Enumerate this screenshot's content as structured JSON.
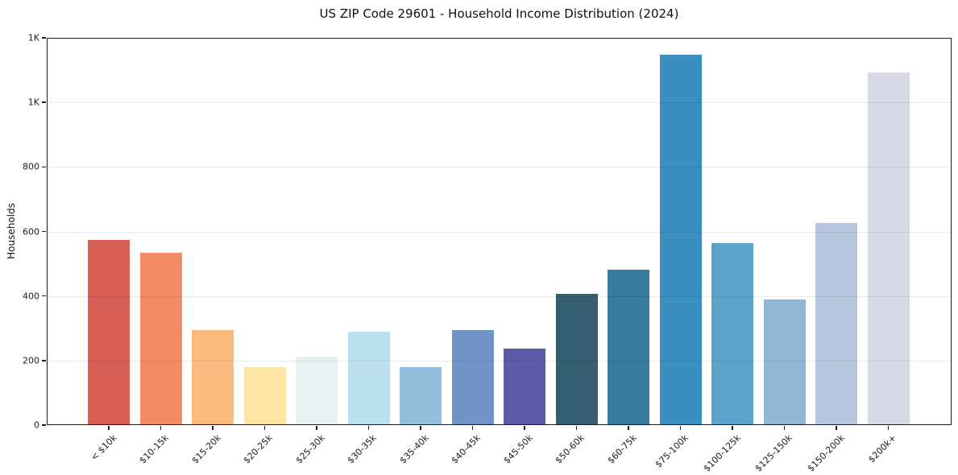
{
  "chart_data": {
    "type": "bar",
    "title": "US ZIP Code 29601 - Household Income Distribution (2024)",
    "xlabel": "",
    "ylabel": "Households",
    "categories": [
      "< $10k",
      "$10-15k",
      "$15-20k",
      "$20-25k",
      "$25-30k",
      "$30-35k",
      "$35-40k",
      "$40-45k",
      "$45-50k",
      "$50-60k",
      "$60-75k",
      "$75-100k",
      "$100-125k",
      "$125-150k",
      "$150-200k",
      "$200k+"
    ],
    "values": [
      575,
      535,
      295,
      180,
      212,
      290,
      180,
      294,
      237,
      406,
      481,
      1148,
      565,
      390,
      626,
      1092
    ],
    "bar_colors": [
      "#d75f55",
      "#f38a66",
      "#fcbb7e",
      "#fde5a6",
      "#e7f3f2",
      "#bce0ee",
      "#92bddb",
      "#7094c8",
      "#5c5baa",
      "#355e73",
      "#387b9f",
      "#3a8fc0",
      "#5ba4c9",
      "#92b6d5",
      "#b6c6de",
      "#d8d9e7"
    ],
    "ylim": [
      0,
      1200
    ],
    "yticks": [
      {
        "value": 0,
        "label": "0"
      },
      {
        "value": 200,
        "label": "200"
      },
      {
        "value": 400,
        "label": "400"
      },
      {
        "value": 600,
        "label": "600"
      },
      {
        "value": 800,
        "label": "800"
      },
      {
        "value": 1000,
        "label": "1K"
      },
      {
        "value": 1200,
        "label": "1K"
      }
    ],
    "grid": "horizontal",
    "grid_above_bars": true,
    "legend": "none",
    "x_tick_rotation_degrees": 45
  },
  "colors": {
    "background": "#ffffff",
    "spine": "#1b1b1b",
    "text": "#111111"
  }
}
